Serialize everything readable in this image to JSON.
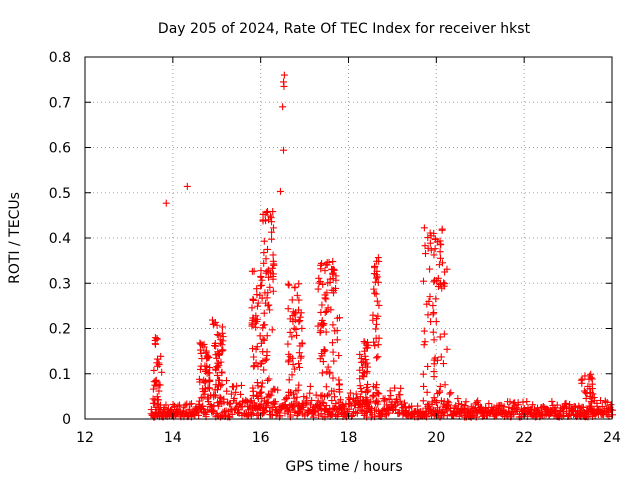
{
  "chart_data": {
    "type": "scatter",
    "title": "Day 205 of 2024, Rate Of TEC Index for receiver hkst",
    "xlabel": "GPS time / hours",
    "ylabel": "ROTI / TECUs",
    "xlim": [
      12,
      24
    ],
    "ylim": [
      0,
      0.8
    ],
    "x_ticks": [
      12,
      14,
      16,
      18,
      20,
      22,
      24
    ],
    "y_ticks": [
      0,
      0.1,
      0.2,
      0.3,
      0.4,
      0.5,
      0.6,
      0.7,
      0.8
    ],
    "grid": true,
    "marker": "plus",
    "colors": {
      "points": "#ff0000",
      "grid": "#a0a0a0",
      "axes": "#000000"
    },
    "series": [
      {
        "name": "ROTI",
        "bursts": [
          {
            "x_start": 13.55,
            "x_end": 13.75,
            "y_max": 0.18,
            "count": 30
          },
          {
            "x_start": 14.6,
            "x_end": 14.85,
            "y_max": 0.18,
            "count": 40
          },
          {
            "x_start": 14.9,
            "x_end": 15.15,
            "y_max": 0.22,
            "count": 45
          },
          {
            "x_start": 15.8,
            "x_end": 16.05,
            "y_max": 0.33,
            "count": 55
          },
          {
            "x_start": 16.05,
            "x_end": 16.3,
            "y_max": 0.46,
            "count": 60
          },
          {
            "x_start": 16.6,
            "x_end": 16.95,
            "y_max": 0.3,
            "count": 50
          },
          {
            "x_start": 17.3,
            "x_end": 17.8,
            "y_max": 0.35,
            "count": 80
          },
          {
            "x_start": 18.25,
            "x_end": 18.45,
            "y_max": 0.18,
            "count": 40
          },
          {
            "x_start": 18.55,
            "x_end": 18.7,
            "y_max": 0.37,
            "count": 35
          },
          {
            "x_start": 19.7,
            "x_end": 20.25,
            "y_max": 0.43,
            "count": 75
          },
          {
            "x_start": 23.3,
            "x_end": 23.6,
            "y_max": 0.1,
            "count": 25
          }
        ],
        "isolated_points": [
          {
            "x": 13.85,
            "y": 0.477
          },
          {
            "x": 14.33,
            "y": 0.514
          },
          {
            "x": 16.45,
            "y": 0.503
          },
          {
            "x": 16.52,
            "y": 0.594
          },
          {
            "x": 16.5,
            "y": 0.69
          },
          {
            "x": 16.53,
            "y": 0.735
          },
          {
            "x": 16.52,
            "y": 0.745
          },
          {
            "x": 16.54,
            "y": 0.76
          }
        ]
      }
    ]
  }
}
